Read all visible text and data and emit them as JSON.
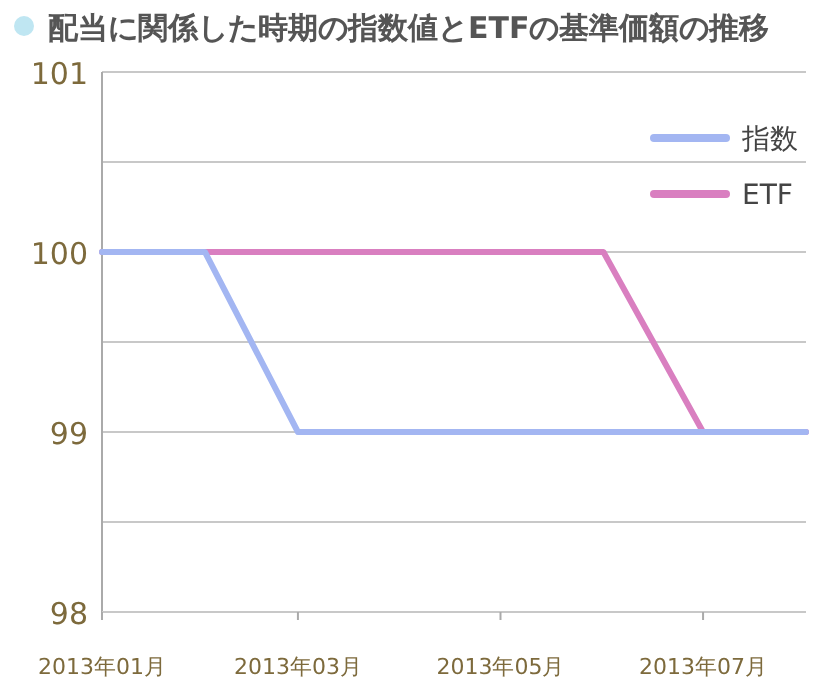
{
  "chart_data": {
    "type": "line",
    "title": "配当に関係した時期の指数値とETFの基準価額の推移",
    "x": [
      "2013-01",
      "2013-02",
      "2013-03",
      "2013-04",
      "2013-05",
      "2013-06",
      "2013-07",
      "2013-08"
    ],
    "series": [
      {
        "name": "指数",
        "color": "#a3b6f2",
        "values": [
          100,
          100,
          99,
          99,
          99,
          99,
          99,
          99
        ]
      },
      {
        "name": "ETF",
        "color": "#d97fc0",
        "values": [
          100,
          100,
          100,
          100,
          100,
          100,
          99,
          99
        ]
      }
    ],
    "xlim": [
      "2013-01",
      "2013-08"
    ],
    "xticks": [
      {
        "value": "2013-01",
        "label": "2013年01月"
      },
      {
        "value": "2013-03",
        "label": "2013年03月"
      },
      {
        "value": "2013-05",
        "label": "2013年05月"
      },
      {
        "value": "2013-07",
        "label": "2013年07月"
      }
    ],
    "ylim": [
      98,
      101
    ],
    "yticks": [
      98,
      {
        "value": 98.5,
        "label": null
      },
      99,
      {
        "value": 99.5,
        "label": null
      },
      100,
      {
        "value": 100.5,
        "label": null
      },
      101
    ],
    "grid": "y",
    "legend": "top right",
    "marker": "none",
    "line_style": "solid"
  }
}
